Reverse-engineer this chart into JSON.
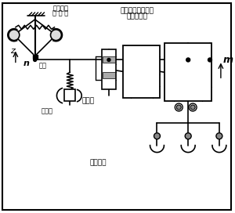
{
  "bg_color": "#ffffff",
  "line_color": "#000000",
  "text_color": "#000000",
  "labels": {
    "centrifugal": "离心飞锤",
    "governor": "调 速 器",
    "hydraulic": "液压伺服驱动机构",
    "oil_engine": "（油动机）",
    "slip_ring": "滑环",
    "synchronizer": "同步器",
    "throttle": "错油门",
    "distribution": "配汽机构",
    "z_label": "z",
    "n_label": "n",
    "m_label": "m"
  },
  "figsize": [
    3.0,
    2.72
  ],
  "dpi": 100
}
